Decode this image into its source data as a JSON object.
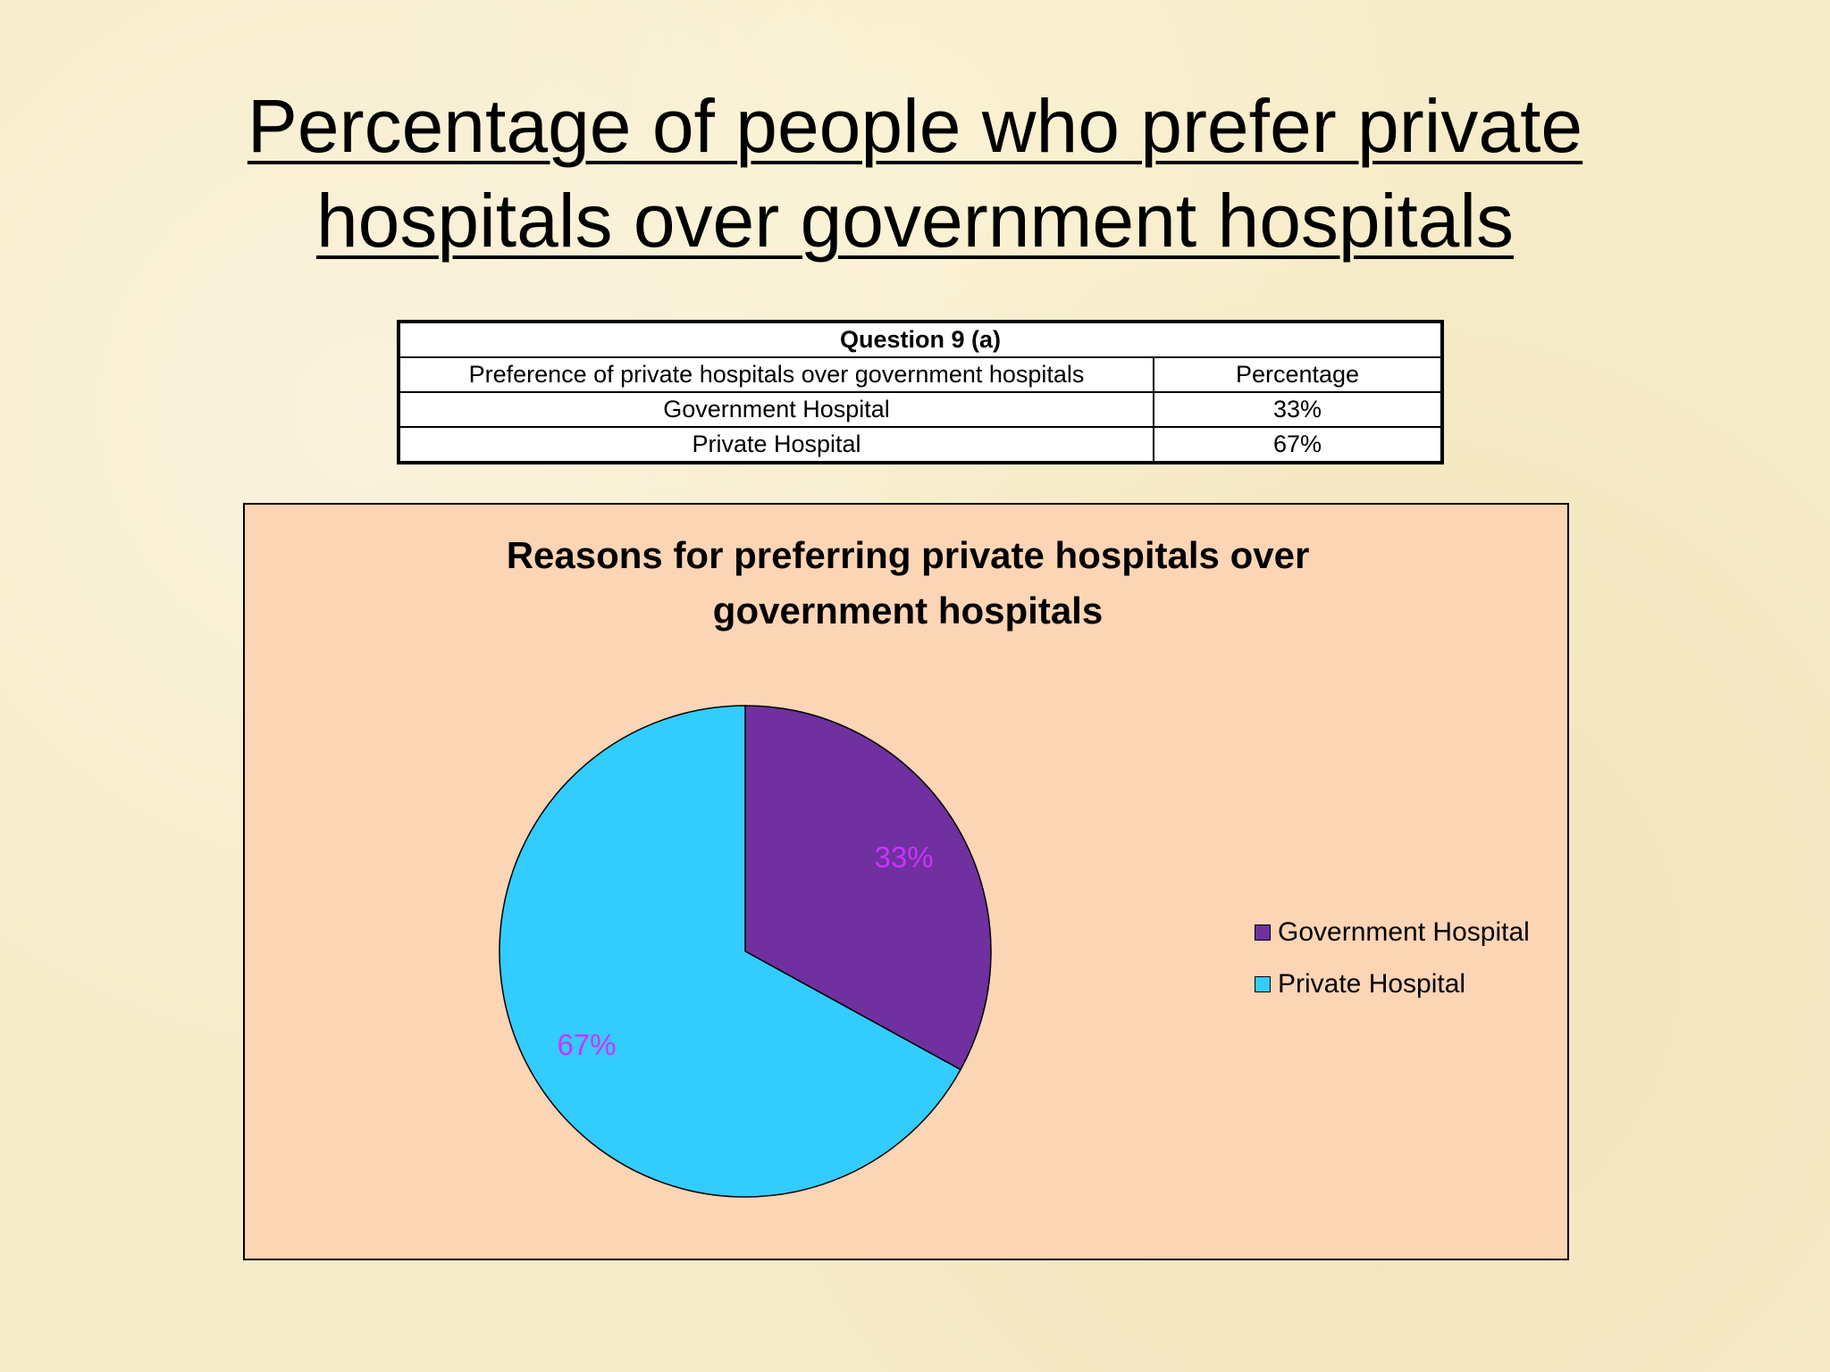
{
  "title": {
    "line1": "Percentage of people who prefer private",
    "line2": "hospitals over government hospitals"
  },
  "table": {
    "caption": "Question 9 (a)",
    "headers": [
      "Preference of  private hospitals over government hospitals",
      "Percentage"
    ],
    "rows": [
      [
        "Government Hospital",
        "33%"
      ],
      [
        "Private Hospital",
        "67%"
      ]
    ]
  },
  "chart_data": {
    "type": "pie",
    "title_line1": "Reasons for preferring private hospitals over",
    "title_line2": "government hospitals",
    "categories": [
      "Government Hospital",
      "Private Hospital"
    ],
    "values": [
      33,
      67
    ],
    "data_labels": [
      "33%",
      "67%"
    ],
    "colors": [
      "#7030a0",
      "#33ccff"
    ],
    "label_color": "#cc33ff",
    "background": "#fcd5b5",
    "start_angle_deg": 0,
    "direction": "clockwise",
    "legend": "right"
  }
}
